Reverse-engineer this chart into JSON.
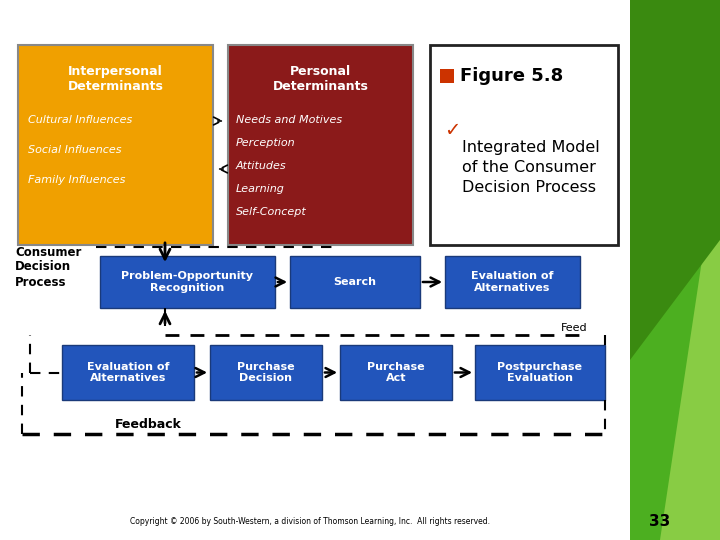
{
  "white": "#ffffff",
  "black": "#000000",
  "light_gray": "#f0f0f0",
  "orange_box_color": "#F0A000",
  "dark_red_box_color": "#8B1A1A",
  "blue_box_color": "#2255BB",
  "orange_square": "#CC3300",
  "check_color": "#CC3300",
  "interpersonal_title": "Interpersonal\nDeterminants",
  "interpersonal_items": [
    "Cultural Influences",
    "Social Influences",
    "Family Influences"
  ],
  "personal_title": "Personal\nDeterminants",
  "personal_items": [
    "Needs and Motives",
    "Perception",
    "Attitudes",
    "Learning",
    "Self-Concept"
  ],
  "figure_title": "Figure 5.8",
  "subtitle": " Integrated Model\n of the Consumer\n Decision Process",
  "consumer_label": "Consumer\nDecision\nProcess",
  "row1_boxes": [
    "Problem-Opportunity\nRecognition",
    "Search",
    "Evaluation of\nAlternatives"
  ],
  "row2_boxes": [
    "Evaluation of\nAlternatives",
    "Purchase\nDecision",
    "Purchase\nAct",
    "Postpurchase\nEvaluation"
  ],
  "feedback_label": "Feedback",
  "feed_label": "Feed",
  "copyright": "Copyright © 2006 by South-Western, a division of Thomson Learning, Inc.  All rights reserved.",
  "page_number": "33",
  "green1": "#4CAF20",
  "green2": "#88CC44"
}
